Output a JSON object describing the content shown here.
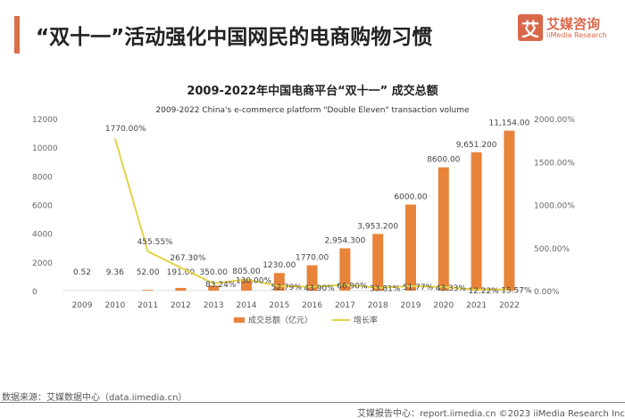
{
  "header": {
    "title": "“双十一”活动强化中国网民的电商购物习惯",
    "logo_cn": "艾媒咨询",
    "logo_en": "iiMedia Research",
    "logo_mark": "艾"
  },
  "footer": {
    "source": "数据来源：艾媒数据中心（data.iimedia.cn）",
    "credit": "艾媒报告中心：report.iimedia.cn  ©2023 iiMedia Research Inc"
  },
  "colors": {
    "bar": "#e8833a",
    "line": "#e5d24a",
    "accent": "#d9704a"
  },
  "chart_data": {
    "type": "bar+line",
    "title": "2009-2022年中国电商平台“双十一” 成交总额",
    "subtitle": "2009-2022 China's e-commerce platform \"Double Eleven\" transaction volume",
    "categories": [
      "2009",
      "2010",
      "2011",
      "2012",
      "2013",
      "2014",
      "2015",
      "2016",
      "2017",
      "2018",
      "2019",
      "2020",
      "2021",
      "2022"
    ],
    "series": [
      {
        "name": "成交总额（亿元）",
        "type": "bar",
        "axis": "left",
        "values": [
          0.52,
          9.36,
          52,
          191,
          350,
          805,
          1230,
          1770,
          2954.3,
          3953.2,
          6000,
          8600,
          9651.2,
          11154
        ],
        "labels": [
          "0.52",
          "9.36",
          "52.00",
          "191.00",
          "350.00",
          "805.00",
          "1230.00",
          "1770.00",
          "2,954.300",
          "3,953.200",
          "6000.00",
          "8600.00",
          "9,651.200",
          "11,154.00"
        ]
      },
      {
        "name": "增长率",
        "type": "line",
        "axis": "right",
        "values": [
          null,
          1770,
          455.55,
          267.3,
          83.24,
          130,
          52.79,
          43.9,
          66.9,
          33.81,
          51.77,
          43.33,
          12.22,
          15.57
        ],
        "labels": [
          "",
          "1770.00%",
          "455.55%",
          "267.30%",
          "83.24%",
          "130.00%",
          "52.79%",
          "43.90%",
          "66.90%",
          "33.81%",
          "51.77%",
          "43.33%",
          "12.22%",
          "15.57%"
        ]
      }
    ],
    "left_axis": {
      "ylim": [
        0,
        12000
      ],
      "ticks": [
        "0",
        "2000",
        "4000",
        "6000",
        "8000",
        "10000",
        "12000"
      ]
    },
    "right_axis": {
      "ylim": [
        0,
        2000
      ],
      "ticks": [
        "0.00%",
        "500.00%",
        "1000.00%",
        "1500.00%",
        "2000.00%"
      ]
    },
    "legend": "bottom",
    "grid": false
  }
}
